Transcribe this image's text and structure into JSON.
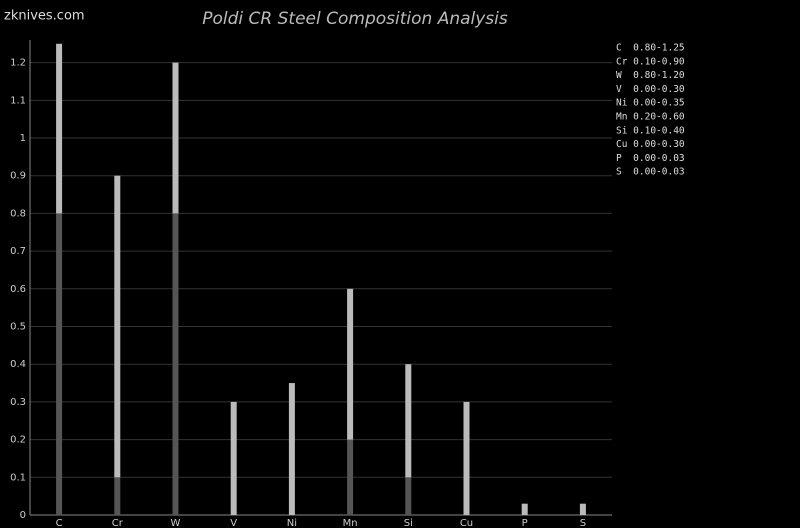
{
  "chart_data": {
    "type": "range-bar",
    "title": "Poldi CR Steel Composition Analysis",
    "watermark": "zknives.com",
    "categories": [
      "C",
      "Cr",
      "W",
      "V",
      "Ni",
      "Mn",
      "Si",
      "Cu",
      "P",
      "S"
    ],
    "min": [
      0.8,
      0.1,
      0.8,
      0.0,
      0.0,
      0.2,
      0.1,
      0.0,
      0.0,
      0.0
    ],
    "max": [
      1.25,
      0.9,
      1.2,
      0.3,
      0.35,
      0.6,
      0.4,
      0.3,
      0.03,
      0.03
    ],
    "legend_labels": [
      "C  0.80-1.25",
      "Cr 0.10-0.90",
      "W  0.80-1.20",
      "V  0.00-0.30",
      "Ni 0.00-0.35",
      "Mn 0.20-0.60",
      "Si 0.10-0.40",
      "Cu 0.00-0.30",
      "P  0.00-0.03",
      "S  0.00-0.03"
    ],
    "ylim": [
      0,
      1.26
    ],
    "yticks": [
      0,
      0.1,
      0.2,
      0.3,
      0.4,
      0.5,
      0.6,
      0.7,
      0.8,
      0.9,
      1,
      1.1,
      1.2
    ],
    "grid": true,
    "color_low": "#555555",
    "color_range": "#bbbbbb"
  }
}
